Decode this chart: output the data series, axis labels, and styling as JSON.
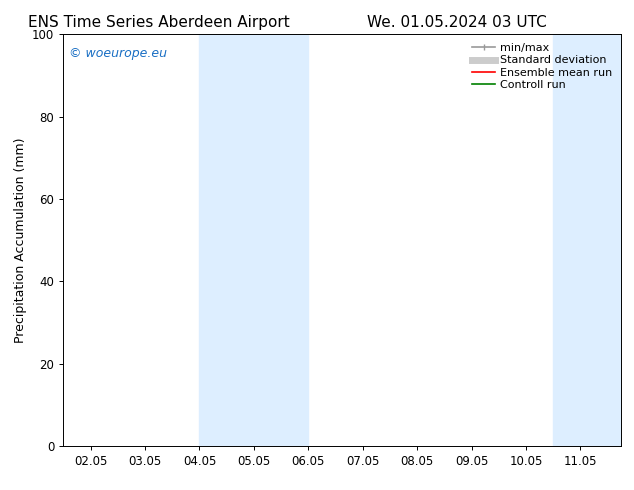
{
  "title_left": "ENS Time Series Aberdeen Airport",
  "title_right": "We. 01.05.2024 03 UTC",
  "ylabel": "Precipitation Accumulation (mm)",
  "xlim": [
    1.5,
    11.75
  ],
  "ylim": [
    0,
    100
  ],
  "yticks": [
    0,
    20,
    40,
    60,
    80,
    100
  ],
  "xtick_labels": [
    "02.05",
    "03.05",
    "04.05",
    "05.05",
    "06.05",
    "07.05",
    "08.05",
    "09.05",
    "10.05",
    "11.05"
  ],
  "xtick_positions": [
    2,
    3,
    4,
    5,
    6,
    7,
    8,
    9,
    10,
    11
  ],
  "shaded_bands": [
    {
      "xmin": 4.0,
      "xmax": 6.0
    },
    {
      "xmin": 10.5,
      "xmax": 11.75
    }
  ],
  "shaded_color": "#ddeeff",
  "watermark_text": "© woeurope.eu",
  "watermark_color": "#1a6fc4",
  "legend_items": [
    {
      "label": "min/max",
      "color": "#999999",
      "lw": 1.2,
      "style": "line_with_caps"
    },
    {
      "label": "Standard deviation",
      "color": "#cccccc",
      "lw": 5,
      "style": "line"
    },
    {
      "label": "Ensemble mean run",
      "color": "red",
      "lw": 1.2,
      "style": "line"
    },
    {
      "label": "Controll run",
      "color": "green",
      "lw": 1.2,
      "style": "line"
    }
  ],
  "bg_color": "#ffffff",
  "plot_bg_color": "#ffffff",
  "title_fontsize": 11,
  "tick_fontsize": 8.5,
  "ylabel_fontsize": 9,
  "legend_fontsize": 8,
  "watermark_fontsize": 9
}
